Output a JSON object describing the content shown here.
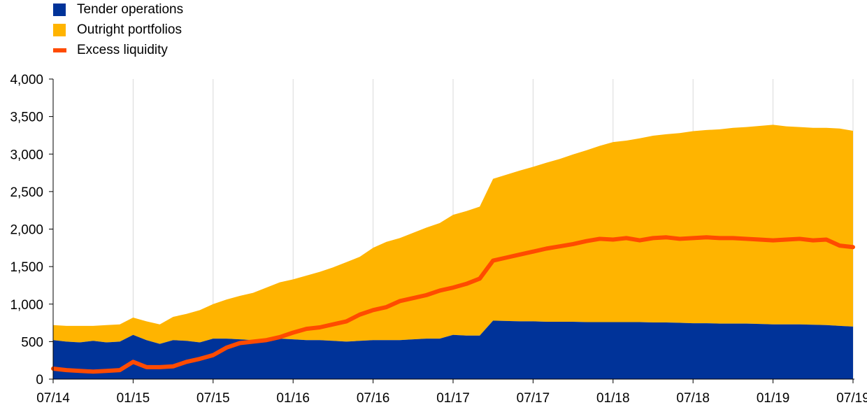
{
  "chart_data": {
    "type": "area",
    "title": "",
    "xlabel": "",
    "ylabel": "",
    "ylim": [
      0,
      4000
    ],
    "y_ticks": [
      "0",
      "500",
      "1,000",
      "1,500",
      "2,000",
      "2,500",
      "3,000",
      "3,500",
      "4,000"
    ],
    "x_tick_labels": [
      "07/14",
      "01/15",
      "07/15",
      "01/16",
      "07/16",
      "01/17",
      "07/17",
      "01/18",
      "07/18",
      "01/19",
      "07/19"
    ],
    "grid": "vertical",
    "legend_position": "top-left",
    "x": [
      "07/14",
      "08/14",
      "09/14",
      "10/14",
      "11/14",
      "12/14",
      "01/15",
      "02/15",
      "03/15",
      "04/15",
      "05/15",
      "06/15",
      "07/15",
      "08/15",
      "09/15",
      "10/15",
      "11/15",
      "12/15",
      "01/16",
      "02/16",
      "03/16",
      "04/16",
      "05/16",
      "06/16",
      "07/16",
      "08/16",
      "09/16",
      "10/16",
      "11/16",
      "12/16",
      "01/17",
      "02/17",
      "03/17",
      "04/17",
      "05/17",
      "06/17",
      "07/17",
      "08/17",
      "09/17",
      "10/17",
      "11/17",
      "12/17",
      "01/18",
      "02/18",
      "03/18",
      "04/18",
      "05/18",
      "06/18",
      "07/18",
      "08/18",
      "09/18",
      "10/18",
      "11/18",
      "12/18",
      "01/19",
      "02/19",
      "03/19",
      "04/19",
      "05/19",
      "06/19",
      "07/19"
    ],
    "series": [
      {
        "name": "Tender operations",
        "kind": "stacked-area",
        "color": "#003399",
        "values": [
          520,
          500,
          490,
          510,
          490,
          500,
          590,
          520,
          470,
          520,
          510,
          490,
          540,
          540,
          530,
          520,
          520,
          540,
          530,
          520,
          520,
          510,
          500,
          510,
          520,
          520,
          520,
          530,
          540,
          540,
          590,
          580,
          580,
          780,
          775,
          770,
          770,
          765,
          765,
          765,
          760,
          760,
          760,
          760,
          760,
          755,
          755,
          750,
          745,
          745,
          740,
          740,
          740,
          735,
          730,
          730,
          730,
          725,
          720,
          710,
          700
        ]
      },
      {
        "name": "Outright portfolios",
        "kind": "stacked-area",
        "color": "#ffb400",
        "values": [
          200,
          210,
          220,
          200,
          230,
          230,
          230,
          250,
          260,
          310,
          360,
          430,
          460,
          520,
          580,
          630,
          700,
          750,
          800,
          860,
          910,
          980,
          1060,
          1120,
          1230,
          1310,
          1360,
          1420,
          1480,
          1540,
          1600,
          1660,
          1720,
          1890,
          1950,
          2010,
          2060,
          2120,
          2170,
          2230,
          2290,
          2350,
          2400,
          2420,
          2450,
          2490,
          2510,
          2530,
          2560,
          2575,
          2590,
          2610,
          2620,
          2640,
          2660,
          2640,
          2630,
          2625,
          2630,
          2630,
          2610
        ]
      },
      {
        "name": "Excess liquidity",
        "kind": "line",
        "color": "#ff4b00",
        "values": [
          140,
          120,
          110,
          100,
          110,
          120,
          230,
          160,
          160,
          170,
          230,
          270,
          320,
          420,
          480,
          500,
          520,
          560,
          620,
          670,
          690,
          730,
          770,
          860,
          920,
          960,
          1040,
          1080,
          1120,
          1180,
          1220,
          1270,
          1340,
          1580,
          1620,
          1660,
          1700,
          1740,
          1770,
          1800,
          1840,
          1870,
          1860,
          1880,
          1850,
          1880,
          1890,
          1870,
          1880,
          1890,
          1880,
          1880,
          1870,
          1860,
          1850,
          1860,
          1870,
          1850,
          1860,
          1780,
          1760
        ]
      }
    ]
  }
}
